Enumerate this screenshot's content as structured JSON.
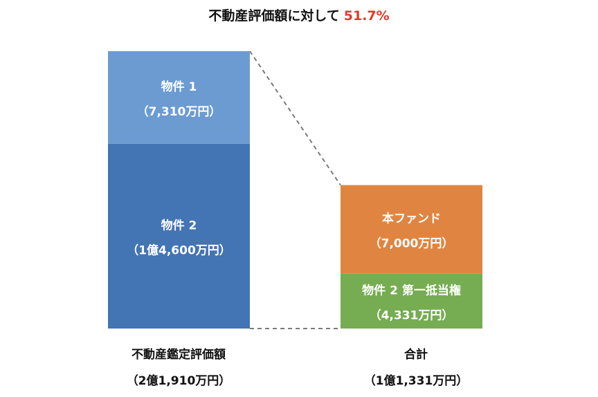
{
  "chart_data": {
    "type": "bar",
    "title": "不動産評価額に対して",
    "title_highlight": "51.7%",
    "unit": "万円",
    "columns": [
      {
        "name": "不動産鑑定評価額",
        "total_label": "（2億1,910万円）",
        "total": 21910,
        "segments": [
          {
            "name": "物件 2",
            "value_label": "（1億4,600万円）",
            "value": 14600,
            "color": "#4374b4"
          },
          {
            "name": "物件 1",
            "value_label": "（7,310万円）",
            "value": 7310,
            "color": "#6b9bd1"
          }
        ]
      },
      {
        "name": "合計",
        "total_label": "（1億1,331万円）",
        "total": 11331,
        "segments": [
          {
            "name": "物件 2 第一抵当権",
            "value_label": "（4,331万円）",
            "value": 4331,
            "color": "#76ac52"
          },
          {
            "name": "本ファンド",
            "value_label": "（7,000万円）",
            "value": 7000,
            "color": "#e08541"
          }
        ]
      }
    ],
    "connector": "dashed"
  }
}
